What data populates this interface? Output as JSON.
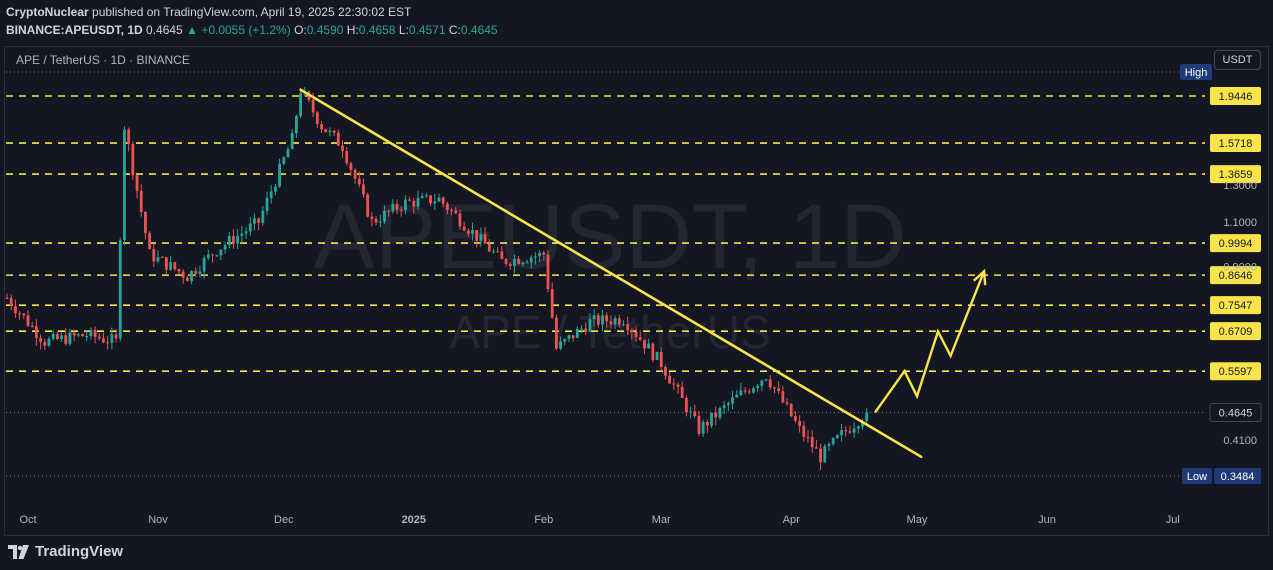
{
  "header": {
    "author": "CryptoNuclear",
    "published_text": "published on TradingView.com, April 19, 2025 22:30:02 EST",
    "symbol_line": "BINANCE:APEUSDT, 1D",
    "last": "0.4645",
    "change": "+0.0055 (+1.2%)",
    "o_label": "O:",
    "o": "0.4590",
    "h_label": "H:",
    "h": "0.4658",
    "l_label": "L:",
    "l": "0.4571",
    "c_label": "C:",
    "c": "0.4645"
  },
  "legend": "APE / TetherUS · 1D · BINANCE",
  "watermark": {
    "line1": "APEUSDT, 1D",
    "line2": "APE / TetherUS"
  },
  "currency_button": "USDT",
  "footer": {
    "brand": "TradingView"
  },
  "colors": {
    "background": "#131722",
    "up": "#26a69a",
    "down": "#ef5350",
    "levels": "#fbe44a",
    "label_text": "#131722"
  },
  "chart_data": {
    "type": "candlestick",
    "symbol": "APEUSDT",
    "interval": "1D",
    "x_axis_labels": [
      "Oct",
      "Nov",
      "Dec",
      "2025",
      "Feb",
      "Mar",
      "Apr",
      "May",
      "Jun",
      "Jul"
    ],
    "y_axis_ticks": [
      "1.3000",
      "1.1000",
      "0.9000",
      "0.4100"
    ],
    "resistance_levels": [
      "1.9446",
      "1.5718",
      "1.3659",
      "0.9994",
      "0.8646",
      "0.7547",
      "0.6709",
      "0.5597"
    ],
    "current_price": "0.4645",
    "high_label": "High",
    "low_label": "Low",
    "low_value": "0.3484",
    "log_scale": true,
    "grid": false,
    "price_path": [
      [
        "2024-09-26",
        0.78
      ],
      [
        "2024-10-05",
        0.64
      ],
      [
        "2024-10-15",
        0.66
      ],
      [
        "2024-10-22",
        0.64
      ],
      [
        "2024-10-24",
        1.7
      ],
      [
        "2024-10-30",
        0.95
      ],
      [
        "2024-11-08",
        0.86
      ],
      [
        "2024-11-15",
        0.97
      ],
      [
        "2024-11-25",
        1.1
      ],
      [
        "2024-12-03",
        1.6
      ],
      [
        "2024-12-05",
        2.0
      ],
      [
        "2024-12-10",
        1.7
      ],
      [
        "2024-12-15",
        1.55
      ],
      [
        "2024-12-22",
        1.1
      ],
      [
        "2024-12-30",
        1.2
      ],
      [
        "2025-01-07",
        1.22
      ],
      [
        "2025-01-15",
        1.05
      ],
      [
        "2025-01-22",
        0.92
      ],
      [
        "2025-02-01",
        0.95
      ],
      [
        "2025-02-04",
        0.62
      ],
      [
        "2025-02-12",
        0.7
      ],
      [
        "2025-02-20",
        0.71
      ],
      [
        "2025-03-01",
        0.58
      ],
      [
        "2025-03-10",
        0.43
      ],
      [
        "2025-03-18",
        0.49
      ],
      [
        "2025-03-26",
        0.55
      ],
      [
        "2025-04-03",
        0.43
      ],
      [
        "2025-04-08",
        0.38
      ],
      [
        "2025-04-13",
        0.42
      ],
      [
        "2025-04-19",
        0.4645
      ]
    ],
    "projection": [
      [
        "2025-04-21",
        0.4645
      ],
      [
        "2025-04-28",
        0.56
      ],
      [
        "2025-05-01",
        0.5
      ],
      [
        "2025-05-06",
        0.67
      ],
      [
        "2025-05-09",
        0.6
      ],
      [
        "2025-05-17",
        0.88
      ]
    ],
    "trendline": [
      [
        "2024-12-05",
        2.0
      ],
      [
        "2025-05-02",
        0.38
      ]
    ]
  }
}
